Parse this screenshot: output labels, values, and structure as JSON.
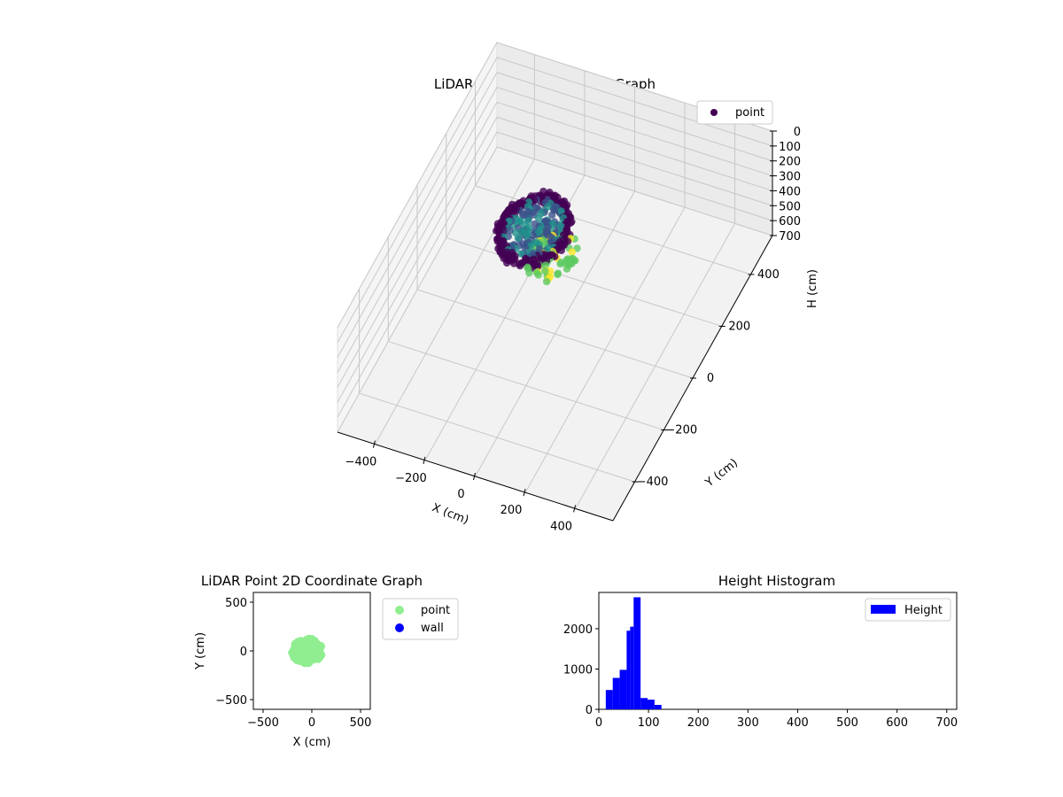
{
  "chart_data": [
    {
      "type": "scatter",
      "title": "LiDAR Point 3D Coordinate Graph",
      "xlabel": "X (cm)",
      "ylabel": "Y (cm)",
      "zlabel": "H (cm)",
      "xlim": [
        -550,
        550
      ],
      "ylim": [
        -550,
        550
      ],
      "zlim": [
        0,
        700
      ],
      "z_inverted": true,
      "xticks": [
        -400,
        -200,
        0,
        200,
        400
      ],
      "yticks": [
        -400,
        -200,
        0,
        200,
        400
      ],
      "zticks": [
        0,
        100,
        200,
        300,
        400,
        500,
        600,
        700
      ],
      "colormap": [
        "#440154",
        "#3b528b",
        "#21918c",
        "#5ec962",
        "#fde725"
      ],
      "legend": {
        "entries": [
          "point"
        ],
        "placement": "upper right"
      },
      "series": [
        {
          "name": "point",
          "color": "#440154",
          "clusters": [
            {
              "shape": "ring",
              "x": -90,
              "y": 10,
              "h": 75,
              "radius": 120,
              "count": 260,
              "hue": 0.05
            },
            {
              "shape": "disk",
              "x": -90,
              "y": 10,
              "h": 70,
              "radius": 110,
              "count": 160,
              "hue": 0.4
            },
            {
              "shape": "disk",
              "x": 10,
              "y": -40,
              "h": 100,
              "radius": 90,
              "count": 90,
              "hue": 0.75
            }
          ]
        }
      ],
      "grid": true
    },
    {
      "type": "scatter",
      "title": "LiDAR Point 2D Coordinate Graph",
      "xlabel": "X (cm)",
      "ylabel": "Y (cm)",
      "xlim": [
        -600,
        600
      ],
      "ylim": [
        -600,
        600
      ],
      "xticks": [
        -500,
        0,
        500
      ],
      "yticks": [
        -500,
        0,
        500
      ],
      "legend": {
        "entries": [
          "point",
          "wall"
        ],
        "placement": "outside right"
      },
      "series": [
        {
          "name": "point",
          "color": "#90ee90",
          "blob": {
            "x": -50,
            "y": 0,
            "rx": 160,
            "ry": 130
          }
        },
        {
          "name": "wall",
          "color": "#0000ff",
          "points": []
        }
      ],
      "grid": false
    },
    {
      "type": "bar",
      "title": "Height Histogram",
      "xlabel": "",
      "ylabel": "",
      "xlim": [
        0,
        720
      ],
      "ylim": [
        0,
        2900
      ],
      "xticks": [
        0,
        100,
        200,
        300,
        400,
        500,
        600,
        700
      ],
      "yticks": [
        0,
        1000,
        2000
      ],
      "bin_width": 14,
      "bins": [
        {
          "x": 14,
          "value": 480
        },
        {
          "x": 28,
          "value": 780
        },
        {
          "x": 42,
          "value": 980
        },
        {
          "x": 56,
          "value": 1950
        },
        {
          "x": 70,
          "value": 2780
        },
        {
          "x": 84,
          "value": 280
        },
        {
          "x": 98,
          "value": 240
        },
        {
          "x": 112,
          "value": 110
        }
      ],
      "bin_extra": [
        {
          "x": 63,
          "value": 2050
        }
      ],
      "color": "#0000ff",
      "legend": {
        "entries": [
          "Height"
        ],
        "placement": "upper right"
      },
      "grid": false
    }
  ]
}
